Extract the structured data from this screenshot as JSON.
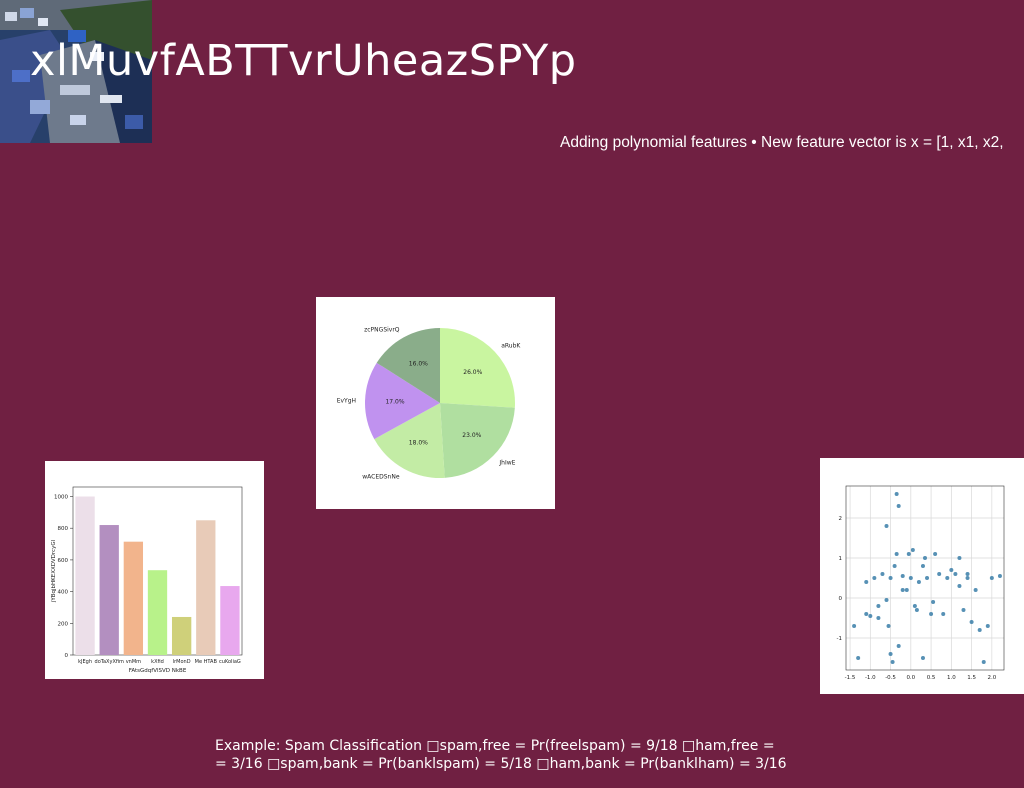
{
  "slide": {
    "title": "xlMuvfABTTvrUheazSPYp",
    "subtitle": "Adding polynomial features • New feature vector is x = [1, x1, x2,",
    "caption_line1": "Example: Spam Classification □spam,free = Pr(freelspam) = 9/18 □ham,free =",
    "caption_line2": "= 3/16 □spam,bank = Pr(banklspam) = 5/18 □ham,bank = Pr(banklham) = 3/16"
  },
  "colors": {
    "background": "#702042",
    "panel": "#ffffff"
  },
  "chart_data": [
    {
      "type": "pie",
      "labels": [
        "aRubK",
        "JhIwE",
        "wACEDSnNe",
        "EvYgH",
        "zcPNGSivrQ"
      ],
      "values": [
        26.0,
        23.0,
        18.0,
        17.0,
        16.0
      ],
      "autopct": [
        "26.0%",
        "23.0%",
        "18.0%",
        "17.0%",
        "16.0%"
      ],
      "colors": [
        "#c9f5a0",
        "#b0dfa0",
        "#c3eca5",
        "#c092ef",
        "#8aad8a"
      ],
      "title": ""
    },
    {
      "type": "bar",
      "categories": [
        "kJEgh",
        "doTaXyXfim",
        "vnMm",
        "kXfid",
        "lrMonD",
        "Me HTAB",
        "cuKoliaG"
      ],
      "values": [
        1000,
        820,
        715,
        535,
        240,
        850,
        435
      ],
      "colors": [
        "#ecdfe9",
        "#b38fc0",
        "#f2b48c",
        "#b8f28a",
        "#cfd07a",
        "#e8cbb8",
        "#e8a8ee"
      ],
      "xlabel": "FAtsGdqfVlSVD NkBE",
      "ylabel": "jYBqjbHKEXXDVDrcyGl",
      "ylim": [
        0,
        1060
      ],
      "yticks": [
        0,
        200,
        400,
        600,
        800,
        1000
      ]
    },
    {
      "type": "scatter",
      "x": [
        -1.4,
        -1.3,
        -1.1,
        -1.1,
        -0.9,
        -0.8,
        -0.8,
        -0.7,
        -0.6,
        -0.55,
        -0.5,
        -0.5,
        -0.45,
        -0.4,
        -0.35,
        -0.35,
        -0.3,
        -0.3,
        -0.2,
        -0.1,
        -0.05,
        0.0,
        0.05,
        0.1,
        0.15,
        0.2,
        0.3,
        0.35,
        0.4,
        0.5,
        0.55,
        0.6,
        0.7,
        0.8,
        0.9,
        1.0,
        1.1,
        1.2,
        1.3,
        1.4,
        1.5,
        1.6,
        1.7,
        1.8,
        1.9,
        2.0,
        2.2,
        -1.0,
        -0.6,
        -0.2,
        0.3,
        1.2,
        1.4
      ],
      "y": [
        -0.7,
        -1.5,
        0.4,
        -0.4,
        0.5,
        -0.2,
        -0.5,
        0.6,
        1.8,
        -0.7,
        0.5,
        -1.4,
        -1.6,
        0.8,
        2.6,
        1.1,
        2.3,
        -1.2,
        0.2,
        0.2,
        1.1,
        0.5,
        1.2,
        -0.2,
        -0.3,
        0.4,
        0.8,
        1.0,
        0.5,
        -0.4,
        -0.1,
        1.1,
        0.6,
        -0.4,
        0.5,
        0.7,
        0.6,
        1.0,
        -0.3,
        0.5,
        -0.6,
        0.2,
        -0.8,
        -1.6,
        -0.7,
        0.5,
        0.55,
        -0.45,
        -0.05,
        0.55,
        -1.5,
        0.3,
        0.6
      ],
      "xticks": [
        "-1.5",
        "-1.0",
        "-0.5",
        "0.0",
        "0.5",
        "1.0",
        "1.5",
        "2.0"
      ],
      "yticks": [
        "-1",
        "0",
        "1",
        "2"
      ],
      "xlim": [
        -1.6,
        2.3
      ],
      "ylim": [
        -1.8,
        2.8
      ],
      "grid": true,
      "color": "#3a7ea8"
    }
  ]
}
